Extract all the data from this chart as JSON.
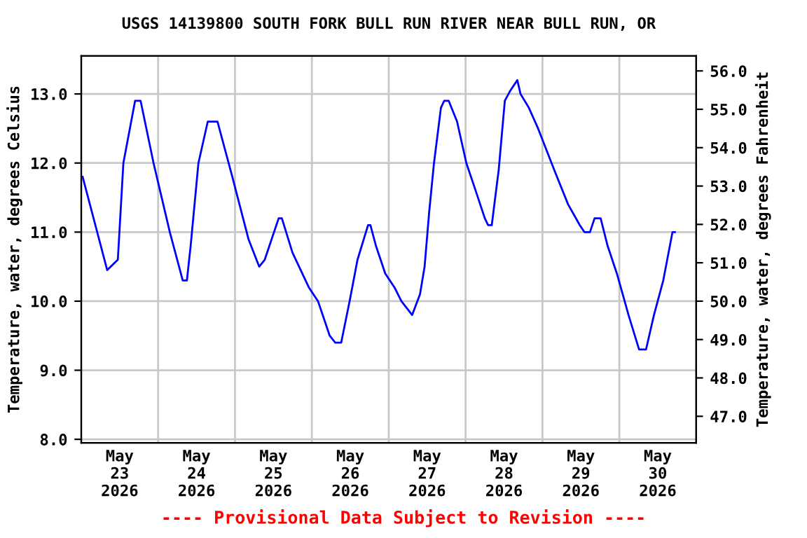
{
  "chart_data": {
    "type": "line",
    "title": "USGS 14139800 SOUTH FORK BULL RUN RIVER NEAR BULL RUN, OR",
    "ylabel": "Temperature, water, degrees Celsius",
    "y2label": "Temperature, water, degrees Fahrenheit",
    "annotations": [
      "---- Provisional Data Subject to Revision ----"
    ],
    "series": [
      {
        "color": "#0000ff",
        "x": [
          "2026-05-23T00:26",
          "2026-05-23T08:06",
          "2026-05-23T11:25",
          "2026-05-23T13:09",
          "2026-05-23T16:48",
          "2026-05-23T18:32",
          "2026-05-23T22:34",
          "2026-05-24T03:39",
          "2026-05-24T07:41",
          "2026-05-24T08:59",
          "2026-05-24T10:09",
          "2026-05-24T12:35",
          "2026-05-24T15:30",
          "2026-05-24T18:32",
          "2026-05-24T23:10",
          "2026-05-25T04:12",
          "2026-05-25T07:33",
          "2026-05-25T09:17",
          "2026-05-25T13:38",
          "2026-05-25T14:38",
          "2026-05-25T17:58",
          "2026-05-25T23:03",
          "2026-05-26T01:55",
          "2026-05-26T05:34",
          "2026-05-26T07:18",
          "2026-05-26T09:10",
          "2026-05-26T11:47",
          "2026-05-26T14:15",
          "2026-05-26T17:33",
          "2026-05-26T18:17",
          "2026-05-26T20:01",
          "2026-05-26T22:55",
          "2026-05-27T01:47",
          "2026-05-27T03:57",
          "2026-05-27T07:18",
          "2026-05-27T09:46",
          "2026-05-27T11:12",
          "2026-05-27T12:39",
          "2026-05-27T14:08",
          "2026-05-27T16:18",
          "2026-05-27T17:18",
          "2026-05-27T18:44",
          "2026-05-27T21:20",
          "2026-05-28T00:14",
          "2026-05-28T03:08",
          "2026-05-28T06:00",
          "2026-05-28T07:02",
          "2026-05-28T08:10",
          "2026-05-28T10:20",
          "2026-05-28T12:15",
          "2026-05-28T13:59",
          "2026-05-28T16:09",
          "2026-05-28T17:09",
          "2026-05-28T19:45",
          "2026-05-28T22:38",
          "2026-05-29T03:40",
          "2026-05-29T08:01",
          "2026-05-29T11:40",
          "2026-05-29T13:06",
          "2026-05-29T14:50",
          "2026-05-29T16:16",
          "2026-05-29T18:10",
          "2026-05-29T20:21",
          "2026-05-29T23:14",
          "2026-05-30T02:52",
          "2026-05-30T06:10",
          "2026-05-30T08:20",
          "2026-05-30T10:49",
          "2026-05-30T13:43",
          "2026-05-30T16:36",
          "2026-05-30T17:20"
        ],
        "values": [
          11.8,
          10.45,
          10.6,
          12.0,
          12.9,
          12.9,
          12.0,
          11.0,
          10.3,
          10.3,
          10.8,
          12.0,
          12.6,
          12.6,
          11.8,
          10.9,
          10.5,
          10.6,
          11.2,
          11.2,
          10.7,
          10.2,
          10.0,
          9.5,
          9.4,
          9.4,
          10.0,
          10.6,
          11.1,
          11.1,
          10.8,
          10.4,
          10.2,
          10.0,
          9.8,
          10.1,
          10.5,
          11.3,
          12.0,
          12.8,
          12.9,
          12.9,
          12.6,
          12.0,
          11.6,
          11.2,
          11.1,
          11.1,
          11.9,
          12.9,
          13.05,
          13.2,
          13.0,
          12.8,
          12.5,
          11.9,
          11.4,
          11.1,
          11.0,
          11.0,
          11.2,
          11.2,
          10.8,
          10.4,
          9.8,
          9.3,
          9.3,
          9.8,
          10.3,
          11.0,
          11.0
        ]
      }
    ],
    "xlim": [
      "2026-05-23",
      "2026-05-31"
    ],
    "xticks": [
      {
        "value": "2026-05-23T12:00",
        "label": "May\n23\n2026"
      },
      {
        "value": "2026-05-24T12:00",
        "label": "May\n24\n2026"
      },
      {
        "value": "2026-05-25T12:00",
        "label": "May\n25\n2026"
      },
      {
        "value": "2026-05-26T12:00",
        "label": "May\n26\n2026"
      },
      {
        "value": "2026-05-27T12:00",
        "label": "May\n27\n2026"
      },
      {
        "value": "2026-05-28T12:00",
        "label": "May\n28\n2026"
      },
      {
        "value": "2026-05-29T12:00",
        "label": "May\n29\n2026"
      },
      {
        "value": "2026-05-30T12:00",
        "label": "May\n30\n2026"
      },
      {
        "value": "2026-05-24",
        "label": null
      },
      {
        "value": "2026-05-25",
        "label": null
      },
      {
        "value": "2026-05-26",
        "label": null
      },
      {
        "value": "2026-05-27",
        "label": null
      },
      {
        "value": "2026-05-28",
        "label": null
      },
      {
        "value": "2026-05-29",
        "label": null
      },
      {
        "value": "2026-05-30",
        "label": null
      }
    ],
    "ylim": [
      7.95,
      13.55
    ],
    "yticks": [
      {
        "value": 8,
        "label": "8.0"
      },
      {
        "value": 9,
        "label": "9.0"
      },
      {
        "value": 10,
        "label": "10.0"
      },
      {
        "value": 11,
        "label": "11.0"
      },
      {
        "value": 12,
        "label": "12.0"
      },
      {
        "value": 13,
        "label": "13.0"
      }
    ],
    "y2lim": [
      46.31,
      56.39
    ],
    "y2ticks": [
      {
        "value": 47,
        "label": "47.0"
      },
      {
        "value": 48,
        "label": "48.0"
      },
      {
        "value": 49,
        "label": "49.0"
      },
      {
        "value": 50,
        "label": "50.0"
      },
      {
        "value": 51,
        "label": "51.0"
      },
      {
        "value": 52,
        "label": "52.0"
      },
      {
        "value": 53,
        "label": "53.0"
      },
      {
        "value": 54,
        "label": "54.0"
      },
      {
        "value": 55,
        "label": "55.0"
      },
      {
        "value": 56,
        "label": "56.0"
      }
    ],
    "grid": true,
    "legend": false,
    "line_style": "solid",
    "marker": "none"
  }
}
